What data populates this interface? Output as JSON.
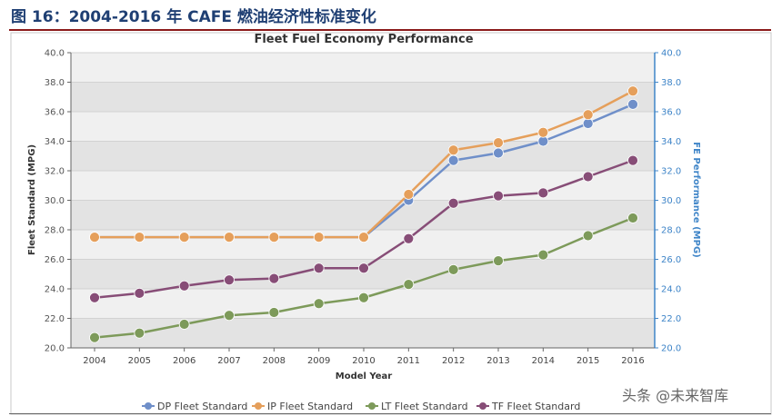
{
  "figure_caption": "图 16：2004-2016 年 CAFE 燃油经济性标准变化",
  "watermark": "头条 @未来智库",
  "colors": {
    "left_axis": "#555555",
    "right_axis": "#3f85c8",
    "plot_bg": "#f0f0f0",
    "band_bg": "#e3e3e3"
  },
  "chart_data": {
    "type": "line",
    "title": "Fleet Fuel Economy Performance",
    "xlabel": "Model Year",
    "ylabel": "Fleet Standard (MPG)",
    "y2label": "FE Performance (MPG)",
    "x": [
      "2004",
      "2005",
      "2006",
      "2007",
      "2008",
      "2009",
      "2010",
      "2011",
      "2012",
      "2013",
      "2014",
      "2015",
      "2016"
    ],
    "ylim": [
      20,
      40
    ],
    "y2lim": [
      20,
      40
    ],
    "yticks": [
      "20.0",
      "22.0",
      "24.0",
      "26.0",
      "28.0",
      "30.0",
      "32.0",
      "34.0",
      "36.0",
      "38.0",
      "40.0"
    ],
    "grid": true,
    "legend_position": "bottom",
    "series": [
      {
        "name": "DP Fleet Standard",
        "color": "#6f8fc9",
        "values": [
          27.5,
          27.5,
          27.5,
          27.5,
          27.5,
          27.5,
          27.5,
          30.0,
          32.7,
          33.2,
          34.0,
          35.2,
          36.5
        ]
      },
      {
        "name": "IP Fleet Standard",
        "color": "#e59f5b",
        "values": [
          27.5,
          27.5,
          27.5,
          27.5,
          27.5,
          27.5,
          27.5,
          30.4,
          33.4,
          33.9,
          34.6,
          35.8,
          37.4
        ]
      },
      {
        "name": "LT Fleet Standard",
        "color": "#7d9a5a",
        "values": [
          20.7,
          21.0,
          21.6,
          22.2,
          22.4,
          23.0,
          23.4,
          24.3,
          25.3,
          25.9,
          26.3,
          27.6,
          28.8
        ]
      },
      {
        "name": "TF Fleet Standard",
        "color": "#874d77",
        "values": [
          23.4,
          23.7,
          24.2,
          24.6,
          24.7,
          25.4,
          25.4,
          27.4,
          29.8,
          30.3,
          30.5,
          31.6,
          32.7
        ]
      }
    ]
  }
}
